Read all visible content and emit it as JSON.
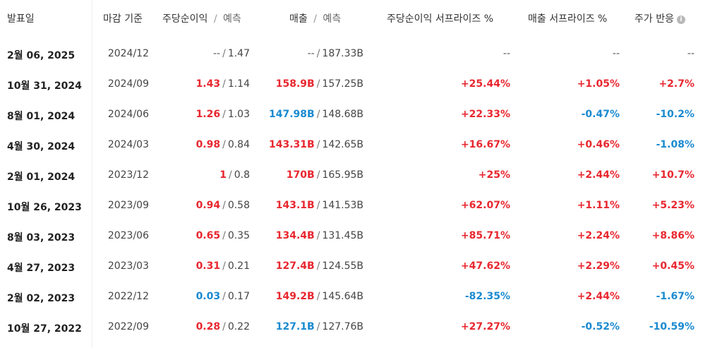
{
  "headers": {
    "date": "발표일",
    "period": "마감 기준",
    "eps": "주당순이익",
    "eps_forecast": "예측",
    "revenue": "매출",
    "revenue_forecast": "예측",
    "eps_surprise": "주당순이익 서프라이즈 %",
    "revenue_surprise": "매출 서프라이즈 %",
    "price_reaction": "주가 반응"
  },
  "separator": "/",
  "rows": [
    {
      "date": "2월 06, 2025",
      "period": "2024/12",
      "eps": "--",
      "eps_fc": "1.47",
      "rev": "--",
      "rev_fc": "187.33B",
      "eps_s": "--",
      "rev_s": "--",
      "price": "--",
      "eps_c": "neutral",
      "rev_c": "neutral",
      "eps_s_c": "neutral",
      "rev_s_c": "neutral",
      "price_c": "neutral"
    },
    {
      "date": "10월 31, 2024",
      "period": "2024/09",
      "eps": "1.43",
      "eps_fc": "1.14",
      "rev": "158.9B",
      "rev_fc": "157.25B",
      "eps_s": "+25.44%",
      "rev_s": "+1.05%",
      "price": "+2.7%",
      "eps_c": "red",
      "rev_c": "red",
      "eps_s_c": "red",
      "rev_s_c": "red",
      "price_c": "red"
    },
    {
      "date": "8월 01, 2024",
      "period": "2024/06",
      "eps": "1.26",
      "eps_fc": "1.03",
      "rev": "147.98B",
      "rev_fc": "148.68B",
      "eps_s": "+22.33%",
      "rev_s": "-0.47%",
      "price": "-10.2%",
      "eps_c": "red",
      "rev_c": "blue",
      "eps_s_c": "red",
      "rev_s_c": "blue",
      "price_c": "blue"
    },
    {
      "date": "4월 30, 2024",
      "period": "2024/03",
      "eps": "0.98",
      "eps_fc": "0.84",
      "rev": "143.31B",
      "rev_fc": "142.65B",
      "eps_s": "+16.67%",
      "rev_s": "+0.46%",
      "price": "-1.08%",
      "eps_c": "red",
      "rev_c": "red",
      "eps_s_c": "red",
      "rev_s_c": "red",
      "price_c": "blue"
    },
    {
      "date": "2월 01, 2024",
      "period": "2023/12",
      "eps": "1",
      "eps_fc": "0.8",
      "rev": "170B",
      "rev_fc": "165.95B",
      "eps_s": "+25%",
      "rev_s": "+2.44%",
      "price": "+10.7%",
      "eps_c": "red",
      "rev_c": "red",
      "eps_s_c": "red",
      "rev_s_c": "red",
      "price_c": "red"
    },
    {
      "date": "10월 26, 2023",
      "period": "2023/09",
      "eps": "0.94",
      "eps_fc": "0.58",
      "rev": "143.1B",
      "rev_fc": "141.53B",
      "eps_s": "+62.07%",
      "rev_s": "+1.11%",
      "price": "+5.23%",
      "eps_c": "red",
      "rev_c": "red",
      "eps_s_c": "red",
      "rev_s_c": "red",
      "price_c": "red"
    },
    {
      "date": "8월 03, 2023",
      "period": "2023/06",
      "eps": "0.65",
      "eps_fc": "0.35",
      "rev": "134.4B",
      "rev_fc": "131.45B",
      "eps_s": "+85.71%",
      "rev_s": "+2.24%",
      "price": "+8.86%",
      "eps_c": "red",
      "rev_c": "red",
      "eps_s_c": "red",
      "rev_s_c": "red",
      "price_c": "red"
    },
    {
      "date": "4월 27, 2023",
      "period": "2023/03",
      "eps": "0.31",
      "eps_fc": "0.21",
      "rev": "127.4B",
      "rev_fc": "124.55B",
      "eps_s": "+47.62%",
      "rev_s": "+2.29%",
      "price": "+0.45%",
      "eps_c": "red",
      "rev_c": "red",
      "eps_s_c": "red",
      "rev_s_c": "red",
      "price_c": "red"
    },
    {
      "date": "2월 02, 2023",
      "period": "2022/12",
      "eps": "0.03",
      "eps_fc": "0.17",
      "rev": "149.2B",
      "rev_fc": "145.64B",
      "eps_s": "-82.35%",
      "rev_s": "+2.44%",
      "price": "-1.67%",
      "eps_c": "blue",
      "rev_c": "red",
      "eps_s_c": "blue",
      "rev_s_c": "red",
      "price_c": "blue"
    },
    {
      "date": "10월 27, 2022",
      "period": "2022/09",
      "eps": "0.28",
      "eps_fc": "0.22",
      "rev": "127.1B",
      "rev_fc": "127.76B",
      "eps_s": "+27.27%",
      "rev_s": "-0.52%",
      "price": "-10.59%",
      "eps_c": "red",
      "rev_c": "blue",
      "eps_s_c": "red",
      "rev_s_c": "blue",
      "price_c": "blue"
    }
  ],
  "colors": {
    "positive": "#e8272f",
    "negative": "#1a8ad0",
    "neutral": "#555555"
  },
  "icons": {
    "price_reaction_info": "info-icon"
  }
}
